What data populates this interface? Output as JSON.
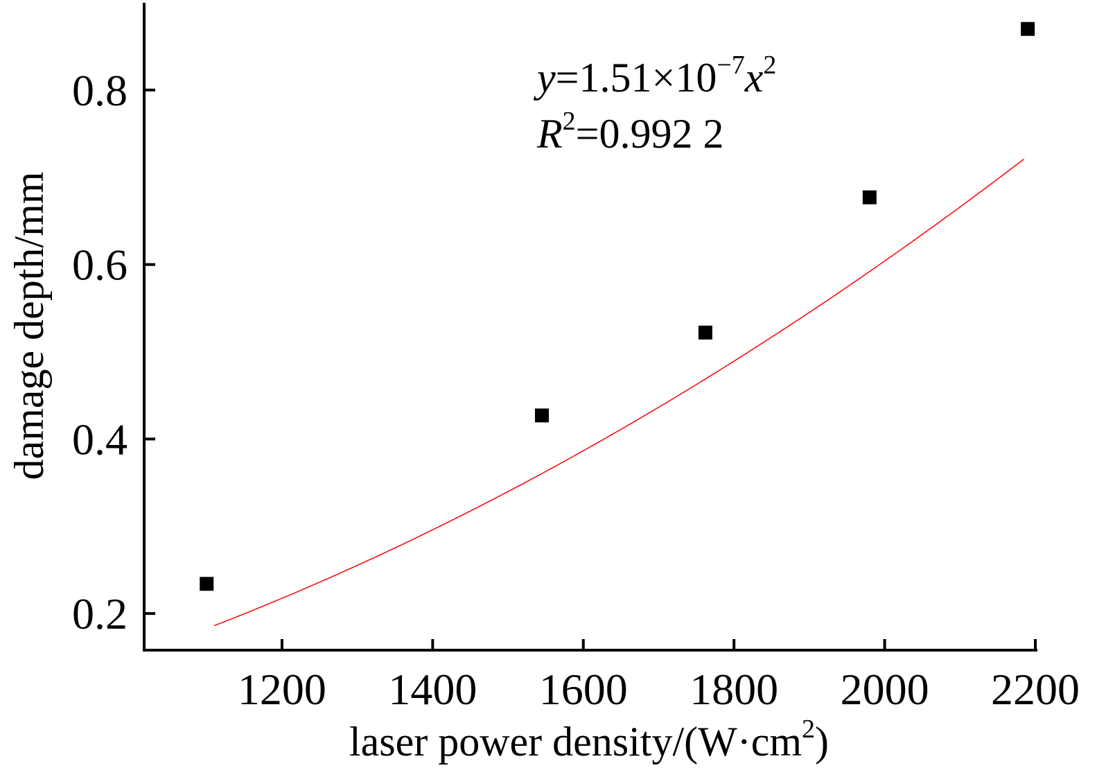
{
  "chart_data": {
    "type": "scatter",
    "xlabel": "laser power density/(W·cm",
    "xlabel_sup": "2",
    "xlabel_end": ")",
    "ylabel": "damage depth/mm",
    "xlim": [
      1017,
      2200
    ],
    "ylim": [
      0.158,
      0.9
    ],
    "x_ticks": [
      1200,
      1400,
      1600,
      1800,
      2000,
      2200
    ],
    "x_tick_labels": [
      "1200",
      "1400",
      "1600",
      "1800",
      "2000",
      "2200"
    ],
    "y_ticks": [
      0.2,
      0.4,
      0.6,
      0.8
    ],
    "y_tick_labels": [
      "0.2",
      "0.4",
      "0.6",
      "0.8"
    ],
    "grid": false,
    "series": [
      {
        "marker": "square",
        "color": "#000000",
        "x": [
          1100,
          1545,
          1762,
          1980,
          2190
        ],
        "y": [
          0.234,
          0.427,
          0.522,
          0.677,
          0.87
        ]
      }
    ],
    "fit": {
      "equation": "y = 1.51e-7 x^2",
      "coefficient": 1.51e-07,
      "x_range": [
        1110,
        2185
      ],
      "color": "#ff0000"
    },
    "annotations": {
      "eq_y": "y",
      "eq_mid": "=1.51×10",
      "eq_exp": "−7",
      "eq_x": "x",
      "eq_x_exp": "2",
      "r2_R": "R",
      "r2_exp": "2",
      "r2_val": "=0.992 2"
    }
  }
}
